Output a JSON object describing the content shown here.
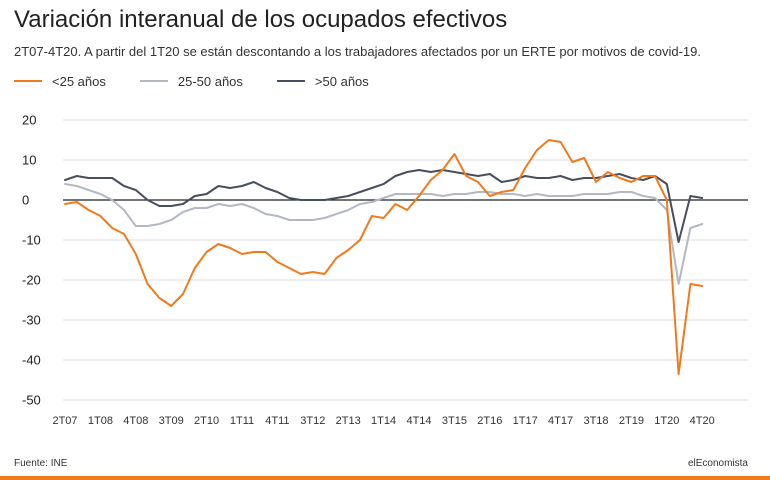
{
  "colors": {
    "under25": "#f07a1e",
    "age25_50": "#b3b8c3",
    "over50": "#474f5e",
    "grid": "#dddddd",
    "zero_line": "#222222",
    "footer_bar": "#f07a1e"
  },
  "footer": {
    "source": "Fuente: INE",
    "brand": "elEconomista"
  },
  "chart_data": {
    "type": "line",
    "title": "Variación interanual de los ocupados efectivos",
    "subtitle": "2T07-4T20. A partir del 1T20 se están descontando a los trabajadores afectados por un ERTE por motivos de covid-19.",
    "ylim": [
      -52,
      22
    ],
    "yticks": [
      20,
      10,
      0,
      -10,
      -20,
      -30,
      -40,
      -50
    ],
    "grid": true,
    "legend_position": "top-left",
    "x": [
      "2T07",
      "3T07",
      "4T07",
      "1T08",
      "2T08",
      "3T08",
      "4T08",
      "1T09",
      "2T09",
      "3T09",
      "4T09",
      "1T10",
      "2T10",
      "3T10",
      "4T10",
      "1T11",
      "2T11",
      "3T11",
      "4T11",
      "1T12",
      "2T12",
      "3T12",
      "4T12",
      "1T13",
      "2T13",
      "3T13",
      "4T13",
      "1T14",
      "2T14",
      "3T14",
      "4T14",
      "1T15",
      "2T15",
      "3T15",
      "4T15",
      "1T16",
      "2T16",
      "3T16",
      "4T16",
      "1T17",
      "2T17",
      "3T17",
      "4T17",
      "1T18",
      "2T18",
      "3T18",
      "4T18",
      "1T19",
      "2T19",
      "3T19",
      "4T19",
      "1T20",
      "2T20",
      "3T20",
      "4T20"
    ],
    "xtick_labels": [
      {
        "index": 0,
        "label": "2T07"
      },
      {
        "index": 3,
        "label": "1T08"
      },
      {
        "index": 6,
        "label": "4T08"
      },
      {
        "index": 9,
        "label": "3T09"
      },
      {
        "index": 12,
        "label": "2T10"
      },
      {
        "index": 15,
        "label": "1T11"
      },
      {
        "index": 18,
        "label": "4T11"
      },
      {
        "index": 21,
        "label": "3T12"
      },
      {
        "index": 24,
        "label": "2T13"
      },
      {
        "index": 27,
        "label": "1T14"
      },
      {
        "index": 30,
        "label": "4T14"
      },
      {
        "index": 33,
        "label": "3T15"
      },
      {
        "index": 36,
        "label": "2T16"
      },
      {
        "index": 39,
        "label": "1T17"
      },
      {
        "index": 42,
        "label": "4T17"
      },
      {
        "index": 45,
        "label": "3T18"
      },
      {
        "index": 48,
        "label": "2T19"
      },
      {
        "index": 51,
        "label": "1T20"
      },
      {
        "index": 54,
        "label": "4T20"
      }
    ],
    "series": [
      {
        "name": "<25 años",
        "color": "#f07a1e",
        "values": [
          -1,
          -0.5,
          -2.5,
          -4,
          -7,
          -8.5,
          -13.5,
          -21,
          -24.5,
          -26.5,
          -23.5,
          -17,
          -13,
          -11,
          -12,
          -13.5,
          -13,
          -13,
          -15.5,
          -17,
          -18.5,
          -18,
          -18.5,
          -14.5,
          -12.5,
          -10,
          -4,
          -4.5,
          -1,
          -2.5,
          1,
          5,
          7.5,
          11.5,
          6,
          4.5,
          1,
          2,
          2.5,
          8,
          12.5,
          15,
          14.5,
          9.5,
          10.5,
          4.5,
          7,
          5.5,
          4.5,
          6,
          6,
          0,
          -43.5,
          -21,
          -21.5
        ]
      },
      {
        "name": "25-50 años",
        "color": "#b3b8c3",
        "values": [
          4,
          3.5,
          2.5,
          1.5,
          0,
          -2.5,
          -6.5,
          -6.5,
          -6,
          -5,
          -3,
          -2,
          -2,
          -1,
          -1.5,
          -1,
          -2,
          -3.5,
          -4,
          -5,
          -5,
          -5,
          -4.5,
          -3.5,
          -2.5,
          -1,
          -0.5,
          0.5,
          1.5,
          1.5,
          1.5,
          1.5,
          1,
          1.5,
          1.5,
          2,
          2,
          1.5,
          1.5,
          1,
          1.5,
          1,
          1,
          1,
          1.5,
          1.5,
          1.5,
          2,
          2,
          1,
          0.5,
          -2.5,
          -21,
          -7,
          -6
        ]
      },
      {
        "name": ">50 años",
        "color": "#474f5e",
        "values": [
          5,
          6,
          5.5,
          5.5,
          5.5,
          3.5,
          2.5,
          0,
          -1.5,
          -1.5,
          -1,
          1,
          1.5,
          3.5,
          3,
          3.5,
          4.5,
          3,
          2,
          0.5,
          0,
          0,
          0,
          0.5,
          1,
          2,
          3,
          4,
          6,
          7,
          7.5,
          7,
          7.5,
          7,
          6.5,
          6,
          6.5,
          4.5,
          5,
          6,
          5.5,
          5.5,
          6,
          5,
          5.5,
          5.5,
          6,
          6.5,
          5.5,
          5,
          6,
          4,
          -10.5,
          1,
          0.5
        ]
      }
    ]
  }
}
